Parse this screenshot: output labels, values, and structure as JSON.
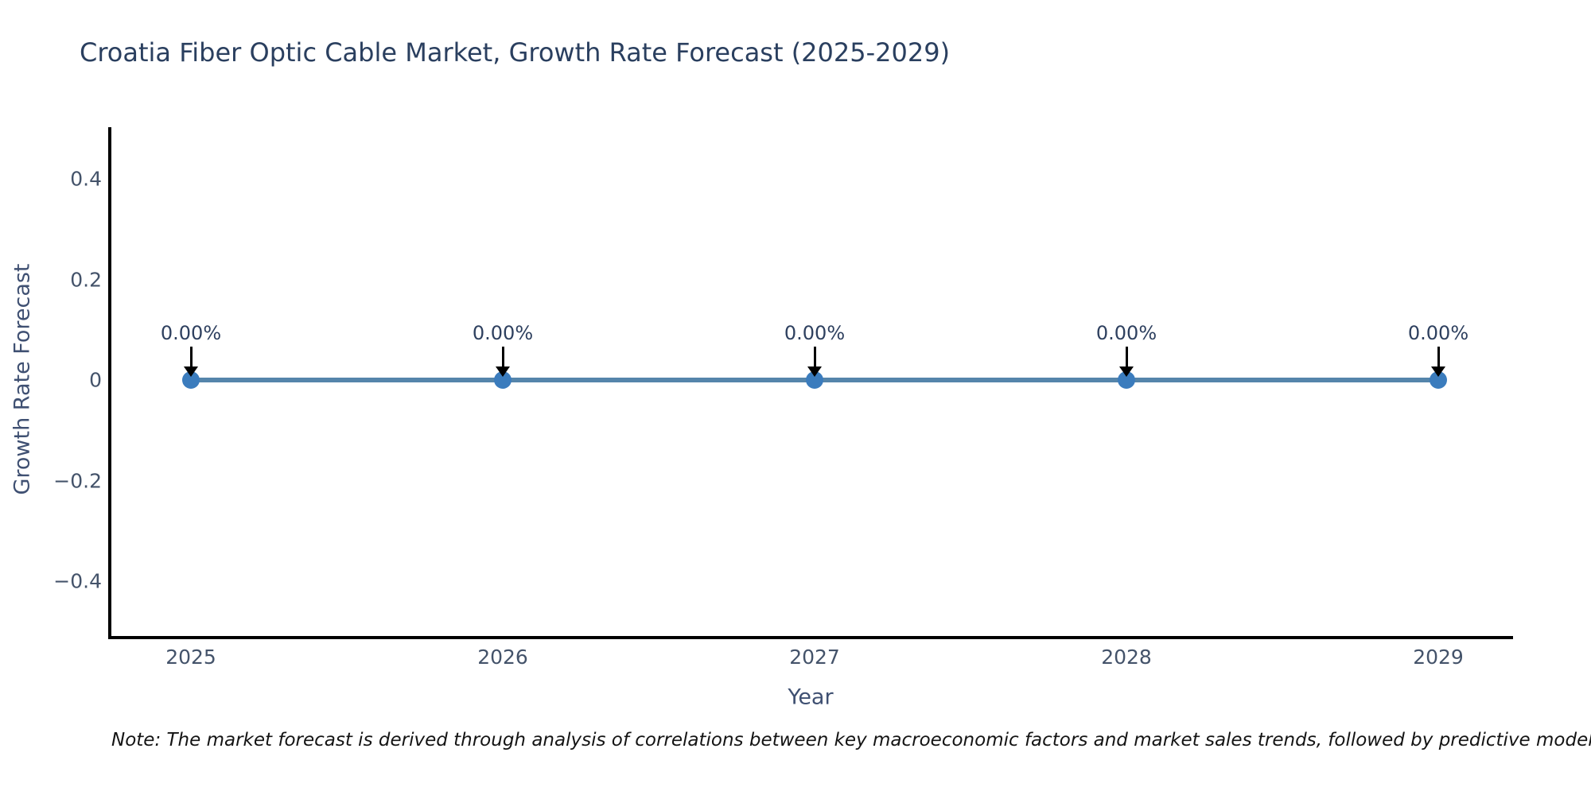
{
  "title": "Croatia Fiber Optic Cable Market, Growth Rate Forecast (2025-2029)",
  "note": "Note: The market forecast is derived through analysis of correlations between key macroeconomic factors and market sales trends, followed by predictive modeling to project future sales.",
  "chart_data": {
    "type": "line",
    "title": "Croatia Fiber Optic Cable Market, Growth Rate Forecast (2025-2029)",
    "xlabel": "Year",
    "ylabel": "Growth Rate Forecast",
    "x": [
      2025,
      2026,
      2027,
      2028,
      2029
    ],
    "xtick_labels": [
      "2025",
      "2026",
      "2027",
      "2028",
      "2029"
    ],
    "series": [
      {
        "name": "Growth Rate Forecast",
        "values": [
          0,
          0,
          0,
          0,
          0
        ]
      }
    ],
    "point_labels": [
      "0.00%",
      "0.00%",
      "0.00%",
      "0.00%",
      "0.00%"
    ],
    "yticks": [
      0.4,
      0.2,
      0,
      -0.2,
      -0.4
    ],
    "ytick_labels": [
      "0.4",
      "0.2",
      "0",
      "−0.2",
      "−0.4"
    ],
    "ylim": [
      -0.5,
      0.5
    ],
    "grid": false,
    "legend": "none",
    "colors": {
      "line": "#5585ab",
      "marker": "#3b7cbd",
      "annotation_arrow": "#000000",
      "axis_spine": "#000000",
      "title_text": "#2a3f5f",
      "tick_text": "#44536a",
      "background": "#ffffff"
    }
  }
}
